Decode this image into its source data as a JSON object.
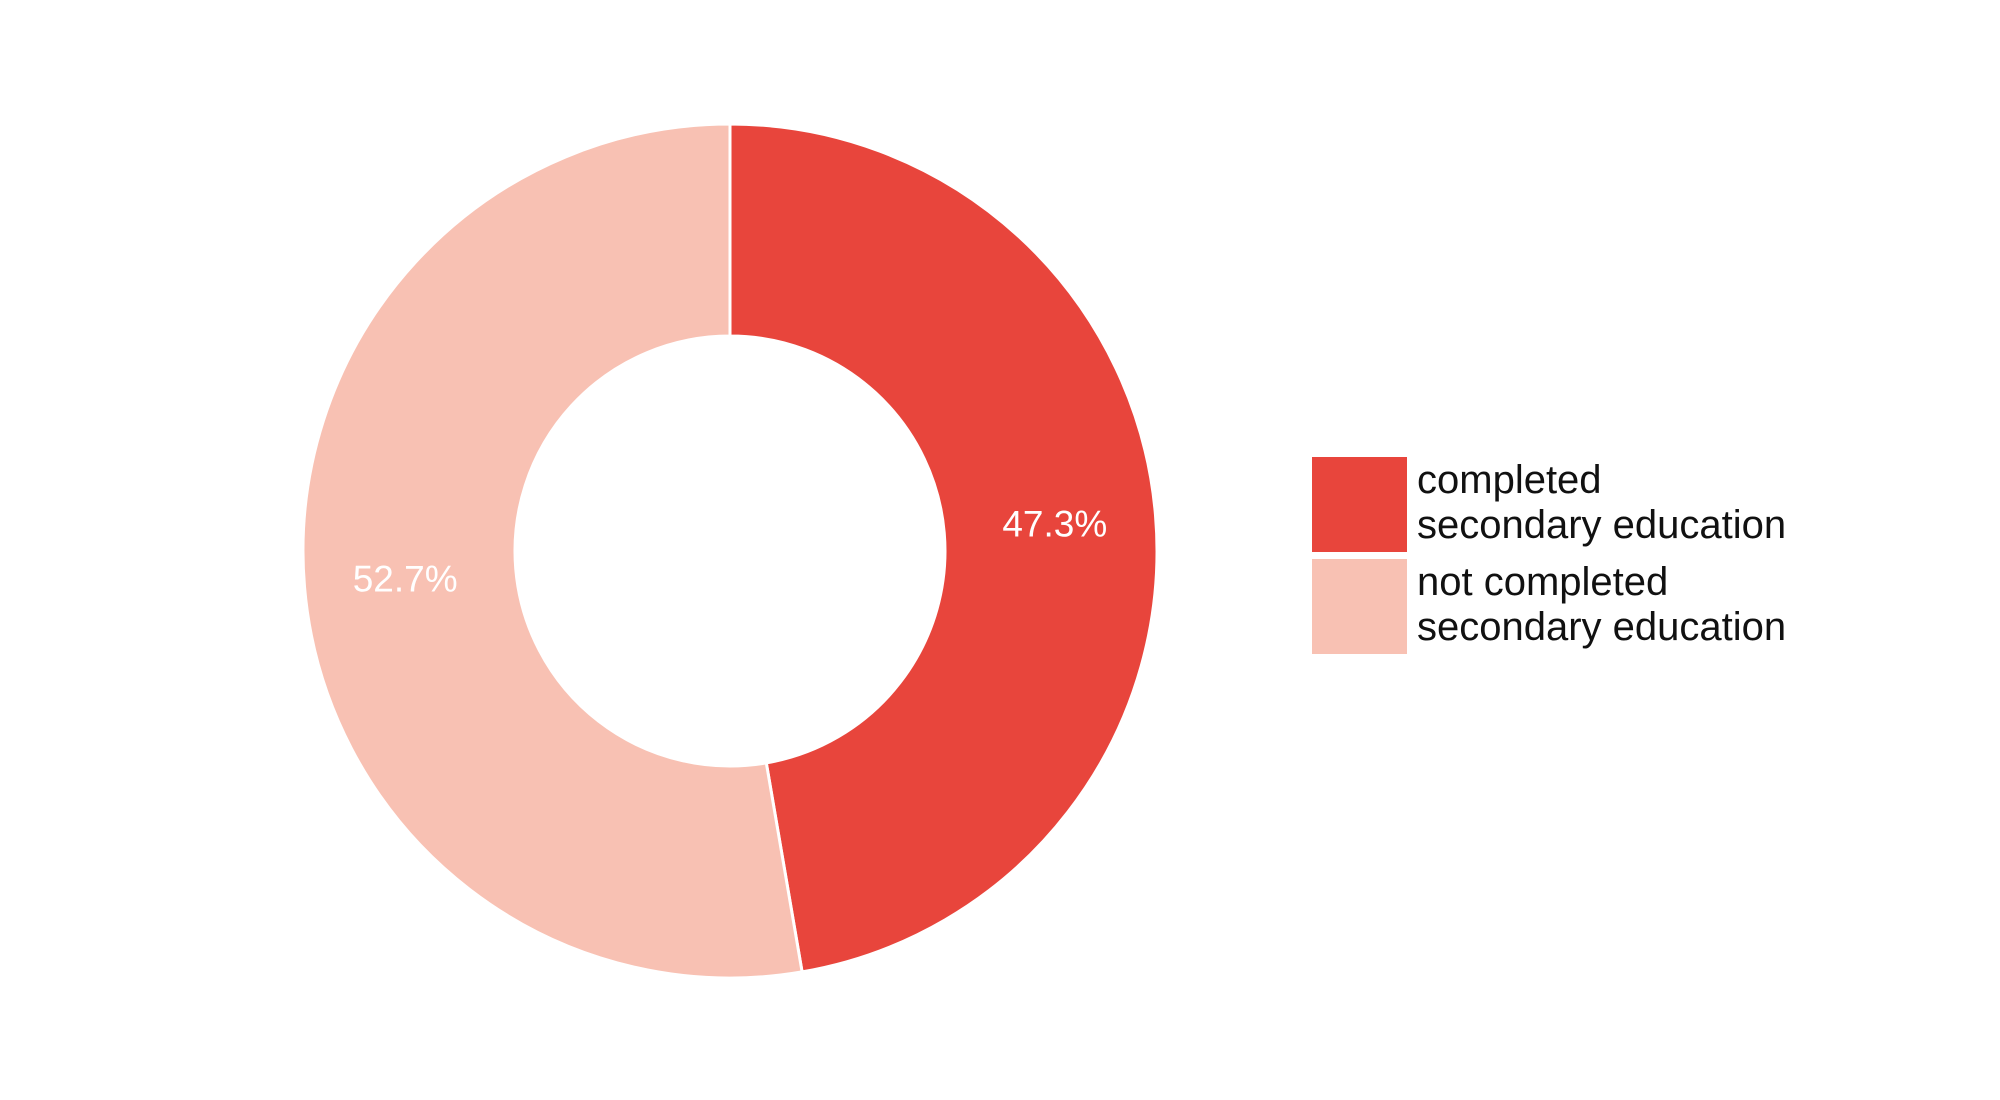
{
  "chart_data": {
    "type": "pie",
    "variant": "donut",
    "title": "",
    "slices": [
      {
        "label_line1": "completed",
        "label_line2": "secondary education",
        "value": 47.3,
        "display": "47.3%",
        "color": "#e8453c"
      },
      {
        "label_line1": "not completed",
        "label_line2": "secondary education",
        "value": 52.7,
        "display": "52.7%",
        "color": "#f8c1b3"
      }
    ],
    "start_angle": "12 o'clock",
    "direction": "clockwise",
    "legend_position": "right",
    "slice_separator_color": "#ffffff"
  }
}
